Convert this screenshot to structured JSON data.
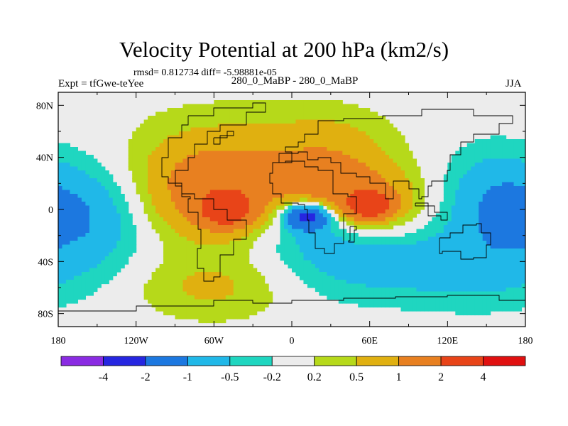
{
  "chart_data": {
    "type": "heatmap",
    "title": "Velocity Potential at 200 hPa (km2/s)",
    "stats_text": "rmsd= 0.812734 diff= -5.98881e-05",
    "left_label": "Expt = tfGwe-teYee",
    "center_label": "280_0_MaBP - 280_0_MaBP",
    "right_label": "JJA",
    "x_ticks": [
      "180",
      "120W",
      "60W",
      "0",
      "60E",
      "120E",
      "180"
    ],
    "y_ticks": [
      "80N",
      "40N",
      "0",
      "40S",
      "80S"
    ],
    "xlim": [
      -180,
      180
    ],
    "ylim": [
      -90,
      90
    ],
    "colorbar": {
      "labels": [
        "-4",
        "-2",
        "-1",
        "-0.5",
        "-0.2",
        "0.2",
        "0.5",
        "1",
        "2",
        "4"
      ],
      "colors": [
        "#8a2be2",
        "#2626e0",
        "#1c78e0",
        "#20b8e8",
        "#1fd6c0",
        "#ececec",
        "#b6d91a",
        "#e0b010",
        "#e88020",
        "#e84418",
        "#e01010"
      ]
    },
    "blobs": [
      {
        "value": 0.7,
        "lon": -60,
        "lat": 30,
        "rlon": 70,
        "rlat": 45
      },
      {
        "value": 1.0,
        "lon": -58,
        "lat": 10,
        "rlon": 55,
        "rlat": 35
      },
      {
        "value": 2.5,
        "lon": -50,
        "lat": 0,
        "rlon": 18,
        "rlat": 12
      },
      {
        "value": 1.5,
        "lon": 50,
        "lat": 5,
        "rlon": 45,
        "rlat": 25
      },
      {
        "value": 2.5,
        "lon": 60,
        "lat": 3,
        "rlon": 15,
        "rlat": 9
      },
      {
        "value": 0.8,
        "lon": 30,
        "lat": 40,
        "rlon": 50,
        "rlat": 35
      },
      {
        "value": -0.8,
        "lon": 20,
        "lat": -12,
        "rlon": 40,
        "rlat": 22
      },
      {
        "value": -2.5,
        "lon": 12,
        "lat": -5,
        "rlon": 18,
        "rlat": 10
      },
      {
        "value": -0.7,
        "lon": 60,
        "lat": -40,
        "rlon": 80,
        "rlat": 30
      },
      {
        "value": -0.9,
        "lon": -155,
        "lat": -5,
        "rlon": 45,
        "rlat": 40
      },
      {
        "value": -0.9,
        "lon": 155,
        "lat": 5,
        "rlon": 40,
        "rlat": 40
      },
      {
        "value": -0.4,
        "lon": 150,
        "lat": -50,
        "rlon": 60,
        "rlat": 30
      },
      {
        "value": 0.6,
        "lon": -60,
        "lat": -60,
        "rlon": 60,
        "rlat": 25
      }
    ]
  }
}
